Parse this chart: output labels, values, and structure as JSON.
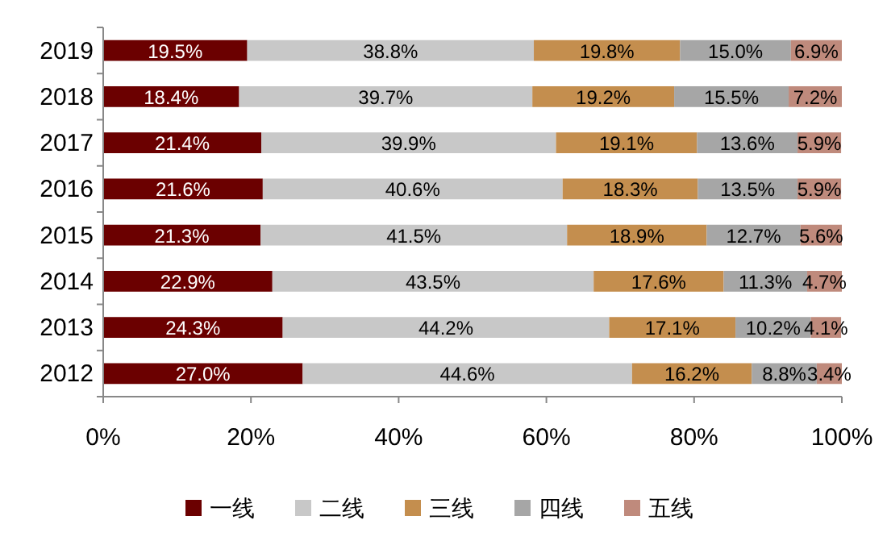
{
  "chart_data": {
    "type": "bar",
    "orientation": "horizontal",
    "stacked": true,
    "categories": [
      "2019",
      "2018",
      "2017",
      "2016",
      "2015",
      "2014",
      "2013",
      "2012"
    ],
    "series": [
      {
        "name": "一线",
        "color": "#6b0000",
        "values": [
          19.5,
          18.4,
          21.4,
          21.6,
          21.3,
          22.9,
          24.3,
          27.0
        ],
        "value_labels": [
          "19.5%",
          "18.4%",
          "21.4%",
          "21.6%",
          "21.3%",
          "22.9%",
          "24.3%",
          "27.0%"
        ]
      },
      {
        "name": "二线",
        "color": "#c8c8c8",
        "values": [
          38.8,
          39.7,
          39.9,
          40.6,
          41.5,
          43.5,
          44.2,
          44.6
        ],
        "value_labels": [
          "38.8%",
          "39.7%",
          "39.9%",
          "40.6%",
          "41.5%",
          "43.5%",
          "44.2%",
          "44.6%"
        ]
      },
      {
        "name": "三线",
        "color": "#c48e4e",
        "values": [
          19.8,
          19.2,
          19.1,
          18.3,
          18.9,
          17.6,
          17.1,
          16.2
        ],
        "value_labels": [
          "19.8%",
          "19.2%",
          "19.1%",
          "18.3%",
          "18.9%",
          "17.6%",
          "17.1%",
          "16.2%"
        ]
      },
      {
        "name": "四线",
        "color": "#a6a6a6",
        "values": [
          15.0,
          15.5,
          13.6,
          13.5,
          12.7,
          11.3,
          10.2,
          8.8
        ],
        "value_labels": [
          "15.0%",
          "15.5%",
          "13.6%",
          "13.5%",
          "12.7%",
          "11.3%",
          "10.2%",
          "8.8%"
        ]
      },
      {
        "name": "五线",
        "color": "#bf8a7c",
        "values": [
          6.9,
          7.2,
          5.9,
          5.9,
          5.6,
          4.7,
          4.1,
          3.4
        ],
        "value_labels": [
          "6.9%",
          "7.2%",
          "5.9%",
          "5.9%",
          "5.6%",
          "4.7%",
          "4.1%",
          "3.4%"
        ]
      }
    ],
    "xlim": [
      0,
      100
    ],
    "xticks": [
      {
        "value": 0,
        "label": "0%"
      },
      {
        "value": 20,
        "label": "20%"
      },
      {
        "value": 40,
        "label": "40%"
      },
      {
        "value": 60,
        "label": "60%"
      },
      {
        "value": 80,
        "label": "80%"
      },
      {
        "value": 100,
        "label": "100%"
      }
    ],
    "legend": "bottom"
  }
}
